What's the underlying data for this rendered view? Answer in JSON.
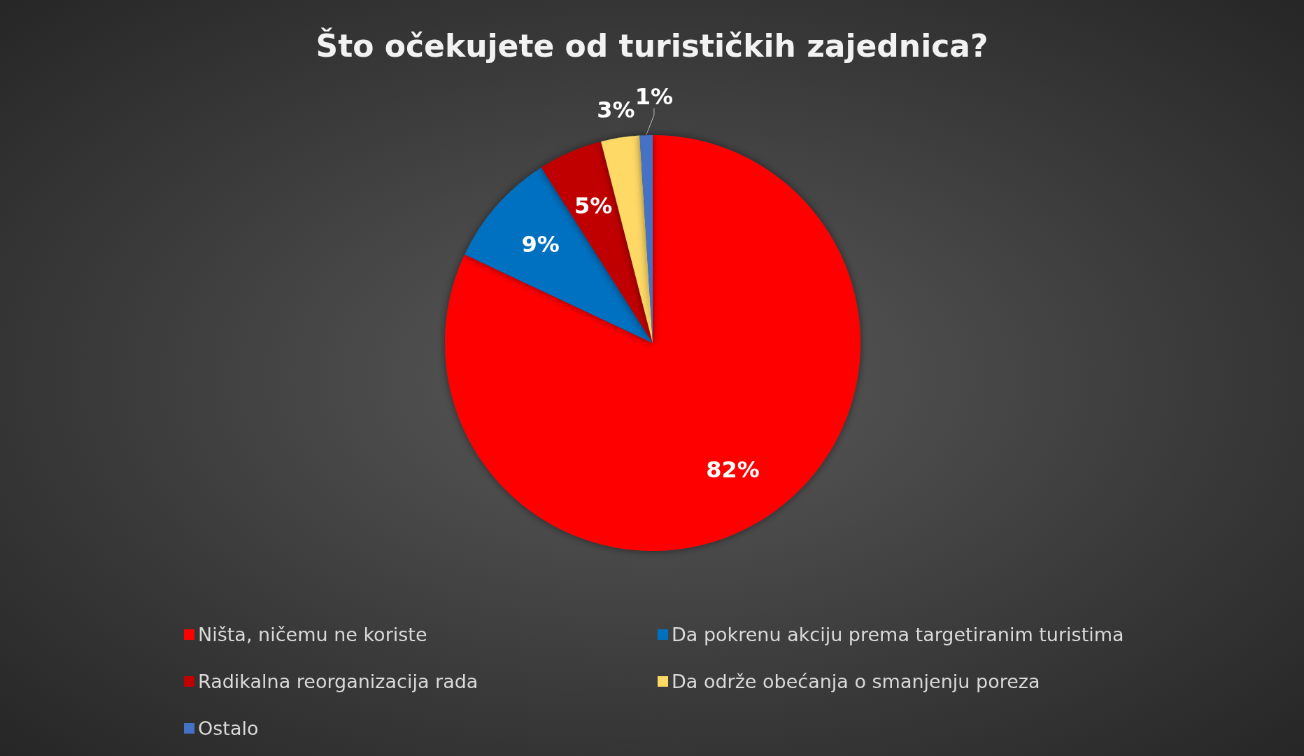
{
  "chart_data": {
    "type": "pie",
    "title": "Što očekujete od turističkih zajednica?",
    "categories": [
      "Ništa, ničemu ne koriste",
      "Da pokrenu akciju prema targetiranim turistima",
      "Radikalna reorganizacija rada",
      "Da održe obećanja o smanjenju poreza",
      "Ostalo"
    ],
    "values": [
      82,
      9,
      5,
      3,
      1
    ],
    "colors": [
      "#ff0000",
      "#0070c0",
      "#c00000",
      "#ffd966",
      "#4472c4"
    ],
    "value_labels": [
      "82%",
      "9%",
      "5%",
      "3%",
      "1%"
    ],
    "legend": "bottom"
  }
}
